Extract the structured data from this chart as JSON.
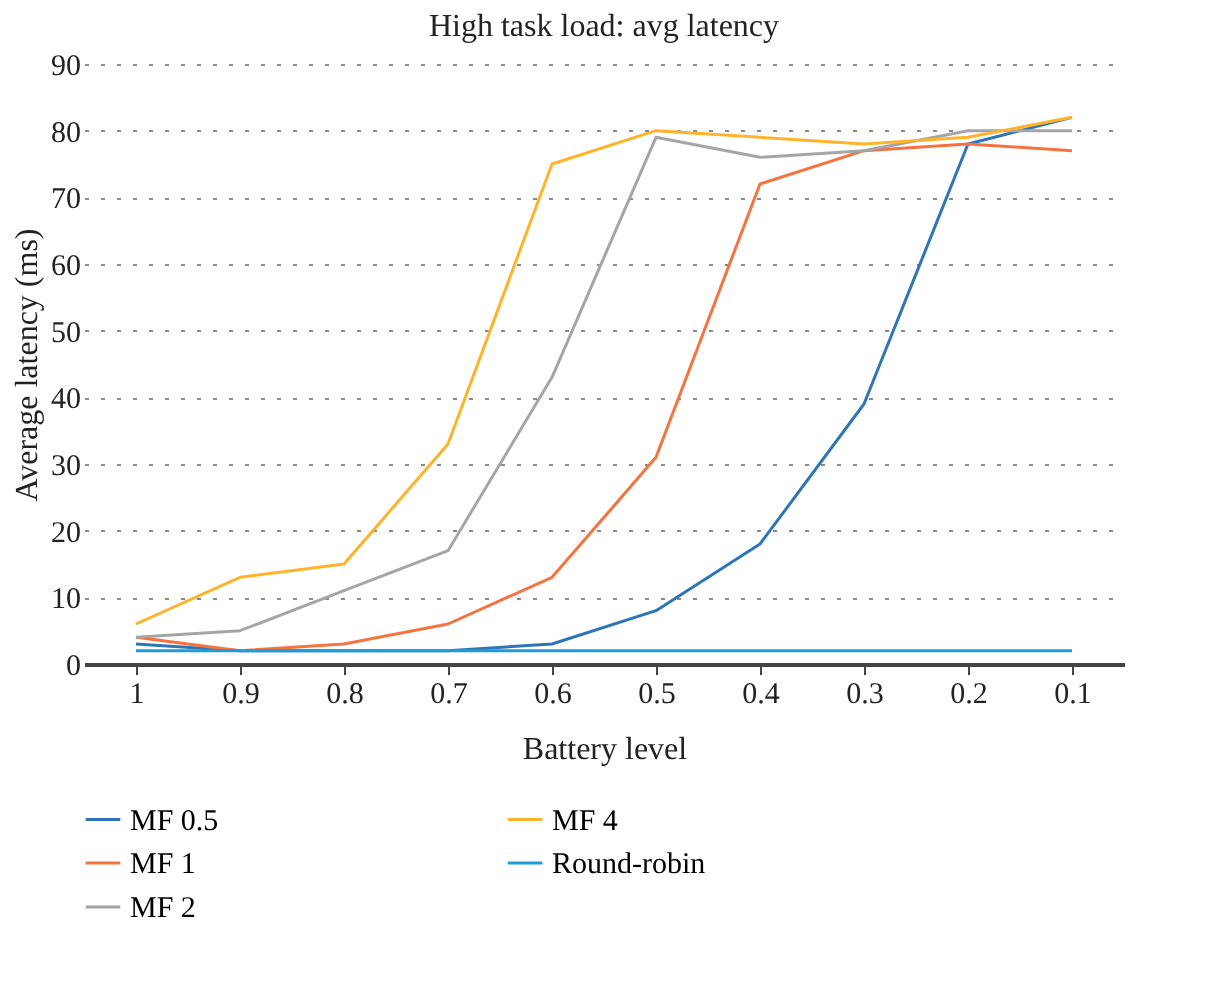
{
  "chart_data": {
    "type": "line",
    "title": "High task load: avg latency",
    "xlabel": "Battery level",
    "ylabel": "Average latency (ms)",
    "categories": [
      "1",
      "0.9",
      "0.8",
      "0.7",
      "0.6",
      "0.5",
      "0.4",
      "0.3",
      "0.2",
      "0.1"
    ],
    "series": [
      {
        "name": "MF 0.5",
        "color": "#2e75b6",
        "values": [
          3,
          2,
          2,
          2,
          3,
          8,
          18,
          39,
          78,
          82
        ]
      },
      {
        "name": "MF 1",
        "color": "#f4733f",
        "values": [
          4,
          2,
          3,
          6,
          13,
          31,
          72,
          77,
          78,
          77
        ]
      },
      {
        "name": "MF 2",
        "color": "#a5a5a5",
        "values": [
          4,
          5,
          11,
          17,
          43,
          79,
          76,
          77,
          80,
          80
        ]
      },
      {
        "name": "MF 4",
        "color": "#ffb32b",
        "values": [
          6,
          13,
          15,
          33,
          75,
          80,
          79,
          78,
          79,
          82
        ]
      },
      {
        "name": "Round-robin",
        "color": "#1f9bd7",
        "values": [
          2,
          2,
          2,
          2,
          2,
          2,
          2,
          2,
          2,
          2
        ]
      }
    ],
    "ylim": [
      0,
      90
    ],
    "yticks": [
      0,
      10,
      20,
      30,
      40,
      50,
      60,
      70,
      80,
      90
    ],
    "grid": "y",
    "legend": "bottom",
    "marker": "none",
    "line_style": "solid"
  }
}
